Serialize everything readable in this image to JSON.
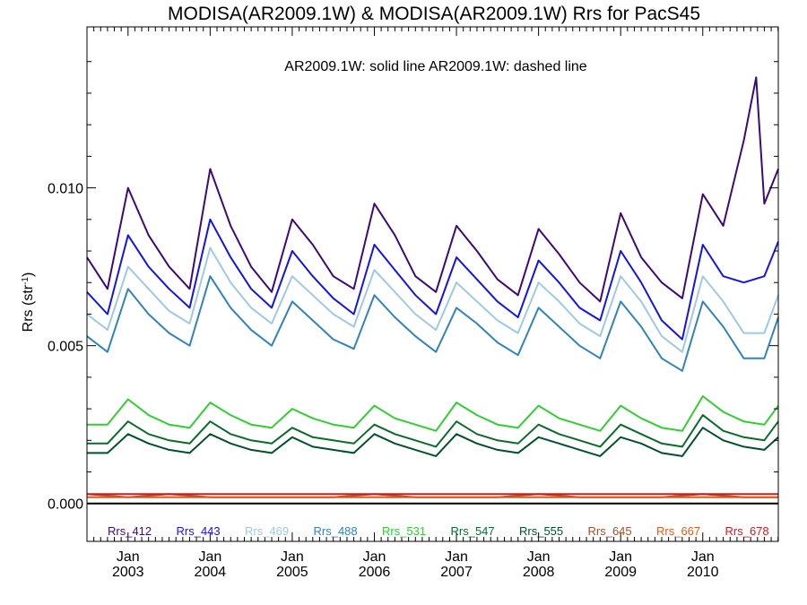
{
  "chart_data": {
    "type": "line",
    "title": "MODISA(AR2009.1W) & MODISA(AR2009.1W)  Rrs for PacS45",
    "subtitle": "AR2009.1W: solid line   AR2009.1W: dashed line",
    "ylabel_main": "Rrs (str",
    "ylabel_sup": "-1",
    "ylabel_close": ")",
    "ylim": [
      -0.0012,
      0.0151
    ],
    "xlim": [
      2002.5,
      2010.92
    ],
    "yticks": [
      {
        "value": 0.0,
        "label": "0.000"
      },
      {
        "value": 0.005,
        "label": "0.005"
      },
      {
        "value": 0.01,
        "label": "0.010"
      }
    ],
    "xticks": [
      {
        "value": 2003.0,
        "line1": "Jan",
        "line2": "2003"
      },
      {
        "value": 2004.0,
        "line1": "Jan",
        "line2": "2004"
      },
      {
        "value": 2005.0,
        "line1": "Jan",
        "line2": "2005"
      },
      {
        "value": 2006.0,
        "line1": "Jan",
        "line2": "2006"
      },
      {
        "value": 2007.0,
        "line1": "Jan",
        "line2": "2007"
      },
      {
        "value": 2008.0,
        "line1": "Jan",
        "line2": "2008"
      },
      {
        "value": 2009.0,
        "line1": "Jan",
        "line2": "2009"
      },
      {
        "value": 2010.0,
        "line1": "Jan",
        "line2": "2010"
      }
    ],
    "zero_line": true,
    "grid": false,
    "legend_position": "bottom",
    "series": [
      {
        "name": "Rrs_412",
        "color": "#3c0a78",
        "x": [
          2002.5,
          2002.75,
          2003.0,
          2003.25,
          2003.5,
          2003.75,
          2004.0,
          2004.25,
          2004.5,
          2004.75,
          2005.0,
          2005.25,
          2005.5,
          2005.75,
          2006.0,
          2006.25,
          2006.5,
          2006.75,
          2007.0,
          2007.25,
          2007.5,
          2007.75,
          2008.0,
          2008.25,
          2008.5,
          2008.75,
          2009.0,
          2009.25,
          2009.5,
          2009.75,
          2010.0,
          2010.25,
          2010.5,
          2010.65,
          2010.75,
          2010.92
        ],
        "y": [
          0.0078,
          0.0068,
          0.01,
          0.0085,
          0.0075,
          0.0068,
          0.0106,
          0.0088,
          0.0075,
          0.0067,
          0.009,
          0.0082,
          0.0072,
          0.0068,
          0.0095,
          0.0085,
          0.0072,
          0.0067,
          0.0088,
          0.008,
          0.0071,
          0.0066,
          0.0087,
          0.0079,
          0.007,
          0.0064,
          0.0092,
          0.0078,
          0.007,
          0.0065,
          0.0098,
          0.0088,
          0.0115,
          0.0135,
          0.0095,
          0.0106
        ]
      },
      {
        "name": "Rrs_443",
        "color": "#1414e6",
        "x": [
          2002.5,
          2002.75,
          2003.0,
          2003.25,
          2003.5,
          2003.75,
          2004.0,
          2004.25,
          2004.5,
          2004.75,
          2005.0,
          2005.25,
          2005.5,
          2005.75,
          2006.0,
          2006.25,
          2006.5,
          2006.75,
          2007.0,
          2007.25,
          2007.5,
          2007.75,
          2008.0,
          2008.25,
          2008.5,
          2008.75,
          2009.0,
          2009.25,
          2009.5,
          2009.75,
          2010.0,
          2010.25,
          2010.5,
          2010.75,
          2010.92
        ],
        "y": [
          0.0067,
          0.006,
          0.0085,
          0.0075,
          0.0068,
          0.0062,
          0.009,
          0.0078,
          0.0068,
          0.0062,
          0.008,
          0.0072,
          0.0065,
          0.006,
          0.0082,
          0.0074,
          0.0066,
          0.006,
          0.0078,
          0.0071,
          0.0064,
          0.0059,
          0.0077,
          0.007,
          0.0062,
          0.0058,
          0.008,
          0.007,
          0.0058,
          0.0052,
          0.0082,
          0.0072,
          0.007,
          0.0072,
          0.0083
        ]
      },
      {
        "name": "Rrs_469",
        "color": "#9ecae1",
        "x": [
          2002.5,
          2002.75,
          2003.0,
          2003.25,
          2003.5,
          2003.75,
          2004.0,
          2004.25,
          2004.5,
          2004.75,
          2005.0,
          2005.25,
          2005.5,
          2005.75,
          2006.0,
          2006.25,
          2006.5,
          2006.75,
          2007.0,
          2007.25,
          2007.5,
          2007.75,
          2008.0,
          2008.25,
          2008.5,
          2008.75,
          2009.0,
          2009.25,
          2009.5,
          2009.75,
          2010.0,
          2010.25,
          2010.5,
          2010.75,
          2010.92
        ],
        "y": [
          0.006,
          0.0055,
          0.0075,
          0.0068,
          0.0061,
          0.0057,
          0.0081,
          0.007,
          0.0062,
          0.0057,
          0.0072,
          0.0066,
          0.006,
          0.0056,
          0.0074,
          0.0067,
          0.006,
          0.0055,
          0.007,
          0.0064,
          0.0058,
          0.0054,
          0.007,
          0.0064,
          0.0057,
          0.0053,
          0.0072,
          0.0064,
          0.0053,
          0.0048,
          0.0072,
          0.0064,
          0.0054,
          0.0054,
          0.0066
        ]
      },
      {
        "name": "Rrs_488",
        "color": "#3182bd",
        "x": [
          2002.5,
          2002.75,
          2003.0,
          2003.25,
          2003.5,
          2003.75,
          2004.0,
          2004.25,
          2004.5,
          2004.75,
          2005.0,
          2005.25,
          2005.5,
          2005.75,
          2006.0,
          2006.25,
          2006.5,
          2006.75,
          2007.0,
          2007.25,
          2007.5,
          2007.75,
          2008.0,
          2008.25,
          2008.5,
          2008.75,
          2009.0,
          2009.25,
          2009.5,
          2009.75,
          2010.0,
          2010.25,
          2010.5,
          2010.75,
          2010.92
        ],
        "y": [
          0.0053,
          0.0048,
          0.0068,
          0.006,
          0.0054,
          0.005,
          0.0072,
          0.0062,
          0.0055,
          0.005,
          0.0064,
          0.0058,
          0.0052,
          0.0049,
          0.0066,
          0.0059,
          0.0053,
          0.0048,
          0.0062,
          0.0057,
          0.0051,
          0.0047,
          0.0062,
          0.0056,
          0.005,
          0.0046,
          0.0064,
          0.0056,
          0.0046,
          0.0042,
          0.0064,
          0.0056,
          0.0046,
          0.0046,
          0.0059
        ]
      },
      {
        "name": "Rrs_531",
        "color": "#32cd32",
        "x": [
          2002.5,
          2002.75,
          2003.0,
          2003.25,
          2003.5,
          2003.75,
          2004.0,
          2004.25,
          2004.5,
          2004.75,
          2005.0,
          2005.25,
          2005.5,
          2005.75,
          2006.0,
          2006.25,
          2006.5,
          2006.75,
          2007.0,
          2007.25,
          2007.5,
          2007.75,
          2008.0,
          2008.25,
          2008.5,
          2008.75,
          2009.0,
          2009.25,
          2009.5,
          2009.75,
          2010.0,
          2010.25,
          2010.5,
          2010.75,
          2010.92
        ],
        "y": [
          0.0025,
          0.0025,
          0.0033,
          0.0028,
          0.0025,
          0.0024,
          0.0032,
          0.0028,
          0.0025,
          0.0024,
          0.003,
          0.0027,
          0.0025,
          0.0024,
          0.0031,
          0.0027,
          0.0025,
          0.0023,
          0.0032,
          0.0028,
          0.0025,
          0.0024,
          0.0031,
          0.0027,
          0.0025,
          0.0023,
          0.0031,
          0.0027,
          0.0024,
          0.0023,
          0.0034,
          0.0029,
          0.0026,
          0.0025,
          0.0031
        ]
      },
      {
        "name": "Rrs_547",
        "color": "#0a6b2a",
        "x": [
          2002.5,
          2002.75,
          2003.0,
          2003.25,
          2003.5,
          2003.75,
          2004.0,
          2004.25,
          2004.5,
          2004.75,
          2005.0,
          2005.25,
          2005.5,
          2005.75,
          2006.0,
          2006.25,
          2006.5,
          2006.75,
          2007.0,
          2007.25,
          2007.5,
          2007.75,
          2008.0,
          2008.25,
          2008.5,
          2008.75,
          2009.0,
          2009.25,
          2009.5,
          2009.75,
          2010.0,
          2010.25,
          2010.5,
          2010.75,
          2010.92
        ],
        "y": [
          0.0019,
          0.0019,
          0.0026,
          0.0022,
          0.002,
          0.0019,
          0.0026,
          0.0022,
          0.002,
          0.0019,
          0.0024,
          0.0021,
          0.002,
          0.0019,
          0.0025,
          0.0022,
          0.002,
          0.0018,
          0.0026,
          0.0022,
          0.002,
          0.0019,
          0.0025,
          0.0022,
          0.002,
          0.0018,
          0.0025,
          0.0022,
          0.0019,
          0.0018,
          0.0028,
          0.0023,
          0.0021,
          0.002,
          0.0026
        ]
      },
      {
        "name": "Rrs_555",
        "color": "#00512a",
        "x": [
          2002.5,
          2002.75,
          2003.0,
          2003.25,
          2003.5,
          2003.75,
          2004.0,
          2004.25,
          2004.5,
          2004.75,
          2005.0,
          2005.25,
          2005.5,
          2005.75,
          2006.0,
          2006.25,
          2006.5,
          2006.75,
          2007.0,
          2007.25,
          2007.5,
          2007.75,
          2008.0,
          2008.25,
          2008.5,
          2008.75,
          2009.0,
          2009.25,
          2009.5,
          2009.75,
          2010.0,
          2010.25,
          2010.5,
          2010.75,
          2010.92
        ],
        "y": [
          0.0016,
          0.0016,
          0.0022,
          0.0019,
          0.0017,
          0.0016,
          0.0022,
          0.0019,
          0.0017,
          0.0016,
          0.0021,
          0.0018,
          0.0017,
          0.0016,
          0.0022,
          0.0019,
          0.0017,
          0.0015,
          0.0022,
          0.0019,
          0.0017,
          0.0016,
          0.0021,
          0.0019,
          0.0017,
          0.0015,
          0.0021,
          0.0019,
          0.0016,
          0.0015,
          0.0024,
          0.002,
          0.0018,
          0.0017,
          0.0021
        ]
      },
      {
        "name": "Rrs_645",
        "color": "#a0522d",
        "x": [
          2002.5,
          2003.0,
          2003.5,
          2004.0,
          2004.5,
          2005.0,
          2005.5,
          2006.0,
          2006.5,
          2007.0,
          2007.5,
          2008.0,
          2008.5,
          2009.0,
          2009.5,
          2010.0,
          2010.5,
          2010.92
        ],
        "y": [
          0.0003,
          0.0002,
          0.0003,
          0.0002,
          0.0002,
          0.0002,
          0.0002,
          0.0003,
          0.0002,
          0.0002,
          0.0002,
          0.0003,
          0.0002,
          0.0002,
          0.0002,
          0.0003,
          0.0002,
          0.0002
        ]
      },
      {
        "name": "Rrs_667",
        "color": "#e05a1e",
        "x": [
          2002.5,
          2003.0,
          2003.5,
          2004.0,
          2004.5,
          2005.0,
          2005.5,
          2006.0,
          2006.5,
          2007.0,
          2007.5,
          2008.0,
          2008.5,
          2009.0,
          2009.5,
          2010.0,
          2010.5,
          2010.92
        ],
        "y": [
          0.0002,
          0.0002,
          0.0002,
          0.0002,
          0.0002,
          0.0002,
          0.0002,
          0.0002,
          0.0002,
          0.0002,
          0.0002,
          0.0002,
          0.0002,
          0.0002,
          0.0002,
          0.0002,
          0.0002,
          0.0002
        ]
      },
      {
        "name": "Rrs_678",
        "color": "#c81e1e",
        "x": [
          2002.5,
          2003.0,
          2003.5,
          2004.0,
          2004.5,
          2005.0,
          2005.5,
          2006.0,
          2006.5,
          2007.0,
          2007.5,
          2008.0,
          2008.5,
          2009.0,
          2009.5,
          2010.0,
          2010.5,
          2010.92
        ],
        "y": [
          0.0003,
          0.0003,
          0.0003,
          0.0003,
          0.0003,
          0.0003,
          0.0003,
          0.0003,
          0.0003,
          0.0003,
          0.0003,
          0.0003,
          0.0003,
          0.0003,
          0.0003,
          0.0003,
          0.0003,
          0.0003
        ]
      }
    ]
  }
}
